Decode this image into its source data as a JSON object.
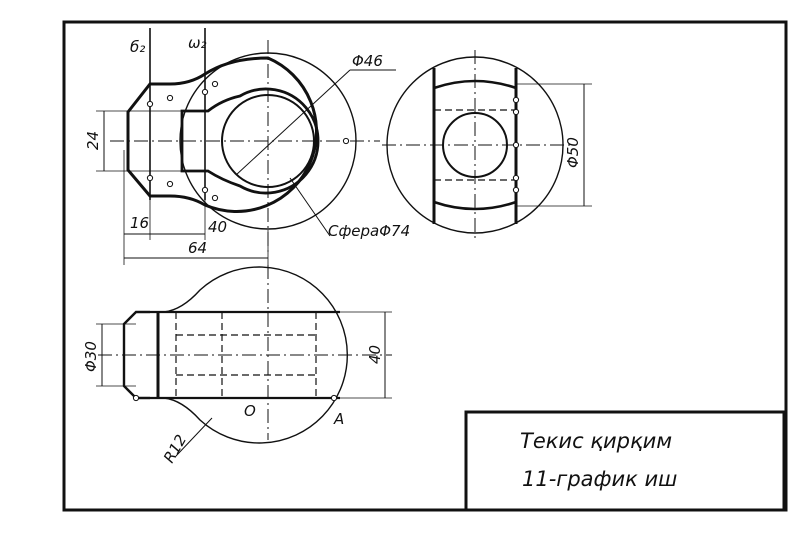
{
  "labels": {
    "plane_b2": "б₂",
    "plane_w2": "ω₂",
    "dia_46": "Φ46",
    "dia_50": "Φ50",
    "sphere_74": "СфераΦ74",
    "dim_24": "24",
    "dim_16": "16",
    "dim_40_top": "40",
    "dim_64": "64",
    "dia_30": "Φ30",
    "dim_40_right": "40",
    "radius_12": "R12",
    "point_o": "O",
    "point_a": "A"
  },
  "title_block": {
    "line1": "Текис қирқим",
    "line2": "11-график иш"
  }
}
